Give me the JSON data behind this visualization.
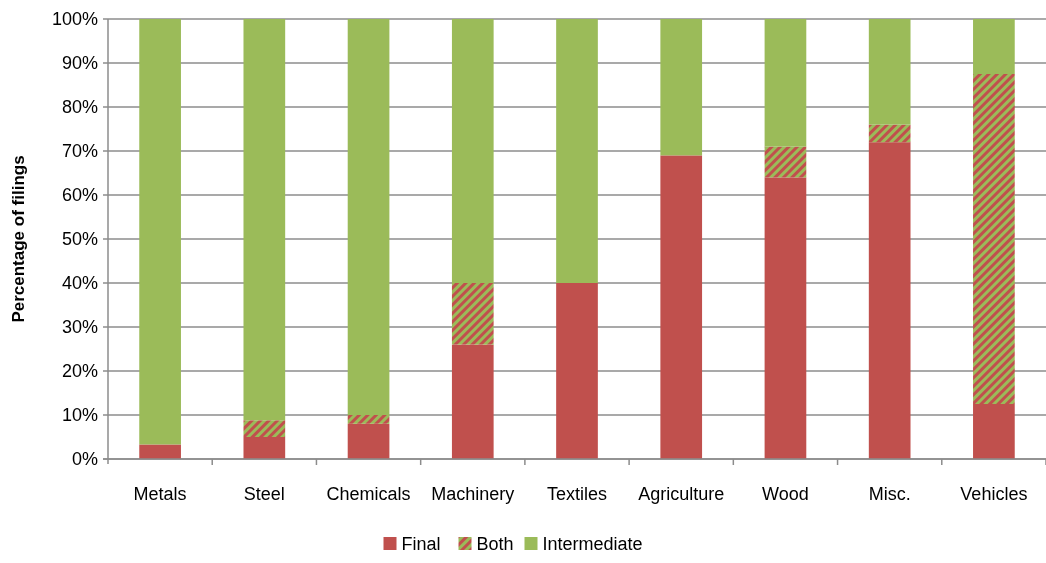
{
  "chart_data": {
    "type": "bar",
    "stacked": true,
    "ylabel": "Percentage of filings",
    "categories": [
      "Metals",
      "Steel",
      "Chemicals",
      "Machinery",
      "Textiles",
      "Agriculture",
      "Wood",
      "Misc.",
      "Vehicles"
    ],
    "series": [
      {
        "name": "Final",
        "color": "#c0504d",
        "values": [
          3.3,
          5,
          8,
          26,
          40,
          69,
          64,
          72,
          12.5
        ]
      },
      {
        "name": "Both",
        "color": "#c0504d",
        "values": [
          0,
          3.8,
          2,
          14,
          0,
          0,
          7,
          4,
          75
        ]
      },
      {
        "name": "Intermediate",
        "color": "#9bbb59",
        "values": [
          96.7,
          91.2,
          90,
          60,
          60,
          31,
          29,
          24,
          12.5
        ]
      }
    ],
    "ylim": [
      0,
      100
    ],
    "yticks": [
      {
        "value": 0,
        "label": "0%"
      },
      {
        "value": 10,
        "label": "10%"
      },
      {
        "value": 20,
        "label": "20%"
      },
      {
        "value": 30,
        "label": "30%"
      },
      {
        "value": 40,
        "label": "40%"
      },
      {
        "value": 50,
        "label": "50%"
      },
      {
        "value": 60,
        "label": "60%"
      },
      {
        "value": 70,
        "label": "70%"
      },
      {
        "value": 80,
        "label": "80%"
      },
      {
        "value": 90,
        "label": "90%"
      },
      {
        "value": 100,
        "label": "100%"
      }
    ],
    "grid": "y",
    "legend": "bottom"
  }
}
